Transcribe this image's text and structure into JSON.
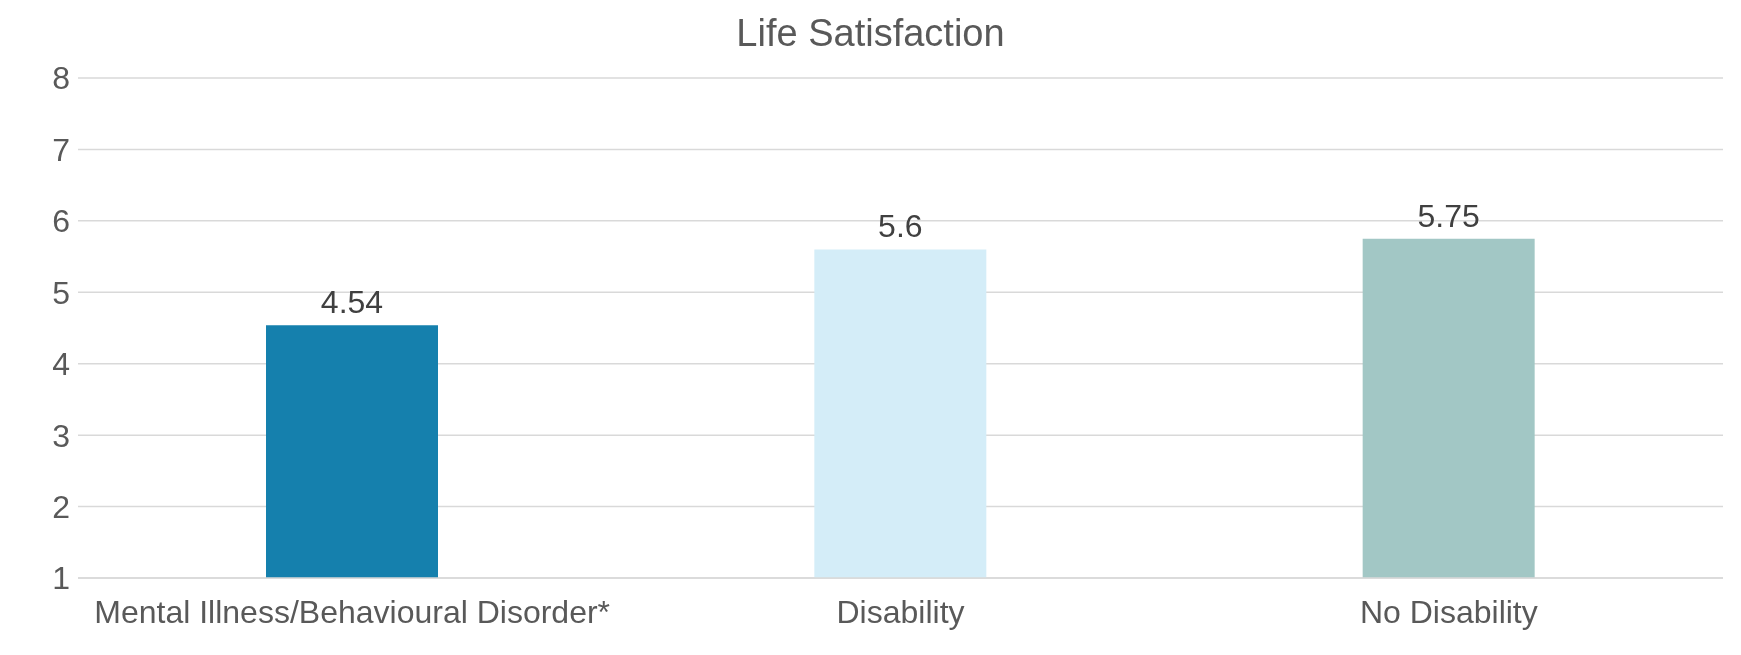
{
  "chart_data": {
    "type": "bar",
    "title": "Life Satisfaction",
    "categories": [
      "Mental Illness/Behavioural Disorder*",
      "Disability",
      "No Disability"
    ],
    "values": [
      4.54,
      5.6,
      5.75
    ],
    "colors": [
      "#1580ad",
      "#d4edf8",
      "#a2c7c5"
    ],
    "ylim": [
      1,
      8
    ],
    "yticks": [
      1,
      2,
      3,
      4,
      5,
      6,
      7,
      8
    ],
    "grid": "y",
    "data_labels": true
  }
}
